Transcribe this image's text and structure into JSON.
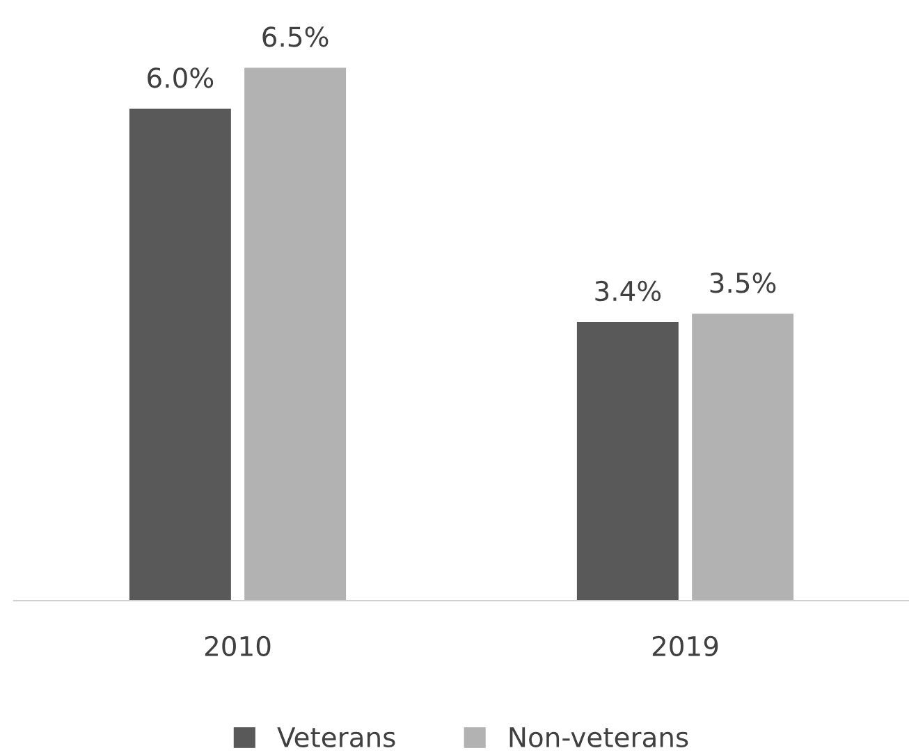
{
  "chart_data": {
    "type": "bar",
    "categories": [
      "2010",
      "2019"
    ],
    "series": [
      {
        "name": "Veterans",
        "color": "#595959",
        "values": [
          6.0,
          3.4
        ],
        "value_labels": [
          "6.0%",
          "3.4%"
        ]
      },
      {
        "name": "Non-veterans",
        "color": "#b2b2b2",
        "values": [
          6.5,
          3.5
        ],
        "value_labels": [
          "6.5%",
          "3.5%"
        ]
      }
    ],
    "grid": false,
    "legend": "bottom"
  }
}
